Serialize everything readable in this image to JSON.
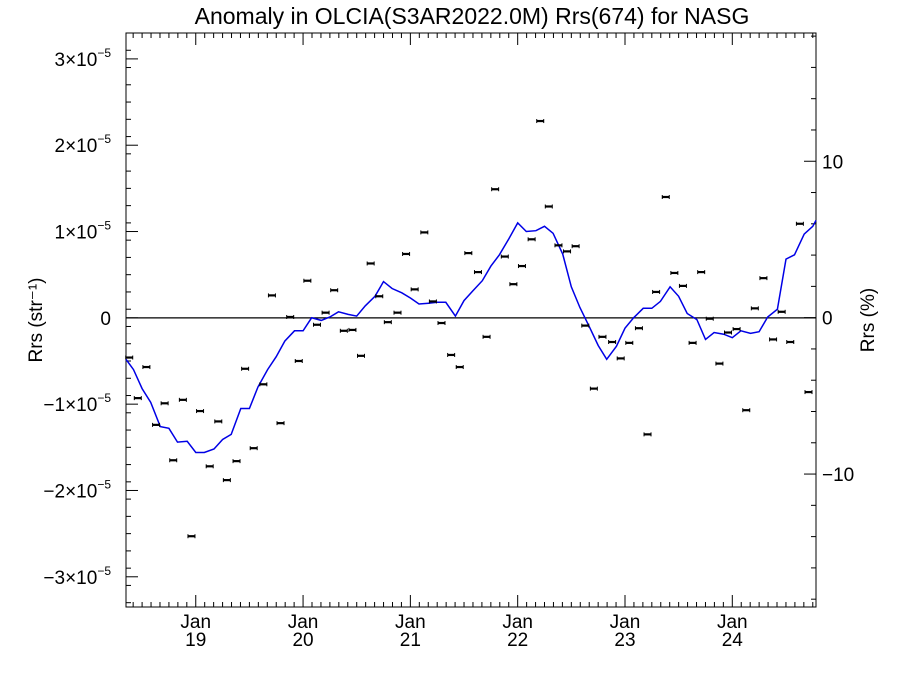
{
  "chart_data": {
    "type": "scatter",
    "title": "Anomaly in OLCIA(S3AR2022.0M) Rrs(674) for NASG",
    "ylabel_left": "Rrs (str⁻¹)",
    "ylabel_right": "Rrs (%)",
    "xlim": [
      2018.35,
      2024.78
    ],
    "ylim": [
      -3.35e-05,
      3.3e-05
    ],
    "ylim_right": [
      -18.5,
      18.2
    ],
    "x_ticks": [
      {
        "value": 2019.0,
        "month": "Jan",
        "year": "19"
      },
      {
        "value": 2020.0,
        "month": "Jan",
        "year": "20"
      },
      {
        "value": 2021.0,
        "month": "Jan",
        "year": "21"
      },
      {
        "value": 2022.0,
        "month": "Jan",
        "year": "22"
      },
      {
        "value": 2023.0,
        "month": "Jan",
        "year": "23"
      },
      {
        "value": 2024.0,
        "month": "Jan",
        "year": "24"
      }
    ],
    "y_ticks_left": [
      {
        "value": 3e-05,
        "mantissa": "3",
        "exp": "−5"
      },
      {
        "value": 2e-05,
        "mantissa": "2",
        "exp": "−5"
      },
      {
        "value": 1e-05,
        "mantissa": "1",
        "exp": "−5"
      },
      {
        "value": 0,
        "mantissa": "0",
        "exp": ""
      },
      {
        "value": -1e-05,
        "mantissa": "−1",
        "exp": "−5"
      },
      {
        "value": -2e-05,
        "mantissa": "−2",
        "exp": "−5"
      },
      {
        "value": -3e-05,
        "mantissa": "−3",
        "exp": "−5"
      }
    ],
    "y_ticks_right": [
      10,
      0,
      -10
    ],
    "zero_line": true,
    "series": [
      {
        "marker": "errorbar-point",
        "color": "#000000",
        "x": [
          2018.38,
          2018.46,
          2018.54,
          2018.63,
          2018.71,
          2018.79,
          2018.88,
          2018.96,
          2019.04,
          2019.13,
          2019.21,
          2019.29,
          2019.38,
          2019.46,
          2019.54,
          2019.63,
          2019.71,
          2019.79,
          2019.88,
          2019.96,
          2020.04,
          2020.13,
          2020.21,
          2020.29,
          2020.38,
          2020.46,
          2020.54,
          2020.63,
          2020.71,
          2020.79,
          2020.88,
          2020.96,
          2021.04,
          2021.13,
          2021.21,
          2021.29,
          2021.38,
          2021.46,
          2021.54,
          2021.63,
          2021.71,
          2021.79,
          2021.88,
          2021.96,
          2022.04,
          2022.13,
          2022.21,
          2022.29,
          2022.38,
          2022.46,
          2022.54,
          2022.63,
          2022.71,
          2022.79,
          2022.88,
          2022.96,
          2023.04,
          2023.13,
          2023.21,
          2023.29,
          2023.38,
          2023.46,
          2023.54,
          2023.63,
          2023.71,
          2023.79,
          2023.88,
          2023.96,
          2024.04,
          2024.13,
          2024.21,
          2024.29,
          2024.38,
          2024.46,
          2024.54,
          2024.63,
          2024.71
        ],
        "y": [
          -4.6e-06,
          -9.3e-06,
          -5.7e-06,
          -1.24e-05,
          -9.9e-06,
          -1.65e-05,
          -9.5e-06,
          -2.53e-05,
          -1.08e-05,
          -1.72e-05,
          -1.2e-05,
          -1.88e-05,
          -1.66e-05,
          -5.9e-06,
          -1.51e-05,
          -7.7e-06,
          2.6e-06,
          -1.22e-05,
          1e-07,
          -5e-06,
          4.3e-06,
          -8e-07,
          6e-07,
          3.2e-06,
          -1.5e-06,
          -1.4e-06,
          -4.4e-06,
          6.3e-06,
          2.5e-06,
          -5e-07,
          6e-07,
          7.4e-06,
          3.3e-06,
          9.9e-06,
          1.9e-06,
          -6e-07,
          -4.3e-06,
          -5.7e-06,
          7.5e-06,
          5.3e-06,
          -2.2e-06,
          1.49e-05,
          7.1e-06,
          3.9e-06,
          6e-06,
          9.1e-06,
          2.28e-05,
          1.29e-05,
          8.4e-06,
          7.7e-06,
          8.3e-06,
          -9e-07,
          -8.2e-06,
          -2.2e-06,
          -2.8e-06,
          -4.7e-06,
          -2.9e-06,
          -1.2e-06,
          -1.35e-05,
          3e-06,
          1.4e-05,
          5.2e-06,
          3.7e-06,
          -2.9e-06,
          5.3e-06,
          -1e-07,
          -5.3e-06,
          -1.7e-06,
          -1.3e-06,
          -1.07e-05,
          1.1e-06,
          4.6e-06,
          -2.5e-06,
          7e-07,
          -2.8e-06,
          1.09e-05,
          -8.6e-06
        ]
      },
      {
        "marker": "line",
        "color": "#0000e6",
        "x": [
          2018.35,
          2018.42,
          2018.5,
          2018.58,
          2018.67,
          2018.75,
          2018.83,
          2018.92,
          2019.0,
          2019.08,
          2019.17,
          2019.25,
          2019.33,
          2019.42,
          2019.5,
          2019.58,
          2019.67,
          2019.75,
          2019.83,
          2019.92,
          2020.0,
          2020.08,
          2020.17,
          2020.25,
          2020.33,
          2020.42,
          2020.5,
          2020.58,
          2020.67,
          2020.75,
          2020.83,
          2020.92,
          2021.0,
          2021.08,
          2021.17,
          2021.25,
          2021.33,
          2021.42,
          2021.5,
          2021.58,
          2021.67,
          2021.75,
          2021.83,
          2021.92,
          2022.0,
          2022.08,
          2022.17,
          2022.25,
          2022.33,
          2022.42,
          2022.5,
          2022.58,
          2022.67,
          2022.75,
          2022.83,
          2022.92,
          2023.0,
          2023.08,
          2023.17,
          2023.25,
          2023.33,
          2023.42,
          2023.5,
          2023.58,
          2023.67,
          2023.75,
          2023.83,
          2023.92,
          2024.0,
          2024.08,
          2024.17,
          2024.25,
          2024.33,
          2024.42,
          2024.5,
          2024.58,
          2024.67,
          2024.75,
          2024.78
        ],
        "y": [
          -4.8e-06,
          -6e-06,
          -8.2e-06,
          -9.8e-06,
          -1.26e-05,
          -1.28e-05,
          -1.44e-05,
          -1.43e-05,
          -1.56e-05,
          -1.56e-05,
          -1.52e-05,
          -1.41e-05,
          -1.35e-05,
          -1.05e-05,
          -1.05e-05,
          -8e-06,
          -6e-06,
          -4.5e-06,
          -2.7e-06,
          -1.5e-06,
          -1.5e-06,
          0,
          -3e-07,
          1e-07,
          7e-07,
          4e-07,
          2e-07,
          1.4e-06,
          2.5e-06,
          4.2e-06,
          3.4e-06,
          2.9e-06,
          2.3e-06,
          1.6e-06,
          1.7e-06,
          1.8e-06,
          1.8e-06,
          2e-07,
          2e-06,
          3.1e-06,
          4.3e-06,
          6e-06,
          7.3e-06,
          9.2e-06,
          1.1e-05,
          1e-05,
          1.01e-05,
          1.06e-05,
          9.8e-06,
          7.4e-06,
          3.6e-06,
          1.2e-06,
          -1.1e-06,
          -3.2e-06,
          -4.8e-06,
          -3.3e-06,
          -1.2e-06,
          0,
          1.1e-06,
          1.1e-06,
          1.9e-06,
          3.6e-06,
          2.5e-06,
          5e-07,
          -2e-07,
          -2.5e-06,
          -1.7e-06,
          -1.9e-06,
          -2.3e-06,
          -1.5e-06,
          -1.8e-06,
          -1.6e-06,
          1e-07,
          1e-06,
          6.8e-06,
          7.3e-06,
          9.7e-06,
          1.06e-05,
          1.13e-05
        ]
      }
    ]
  }
}
